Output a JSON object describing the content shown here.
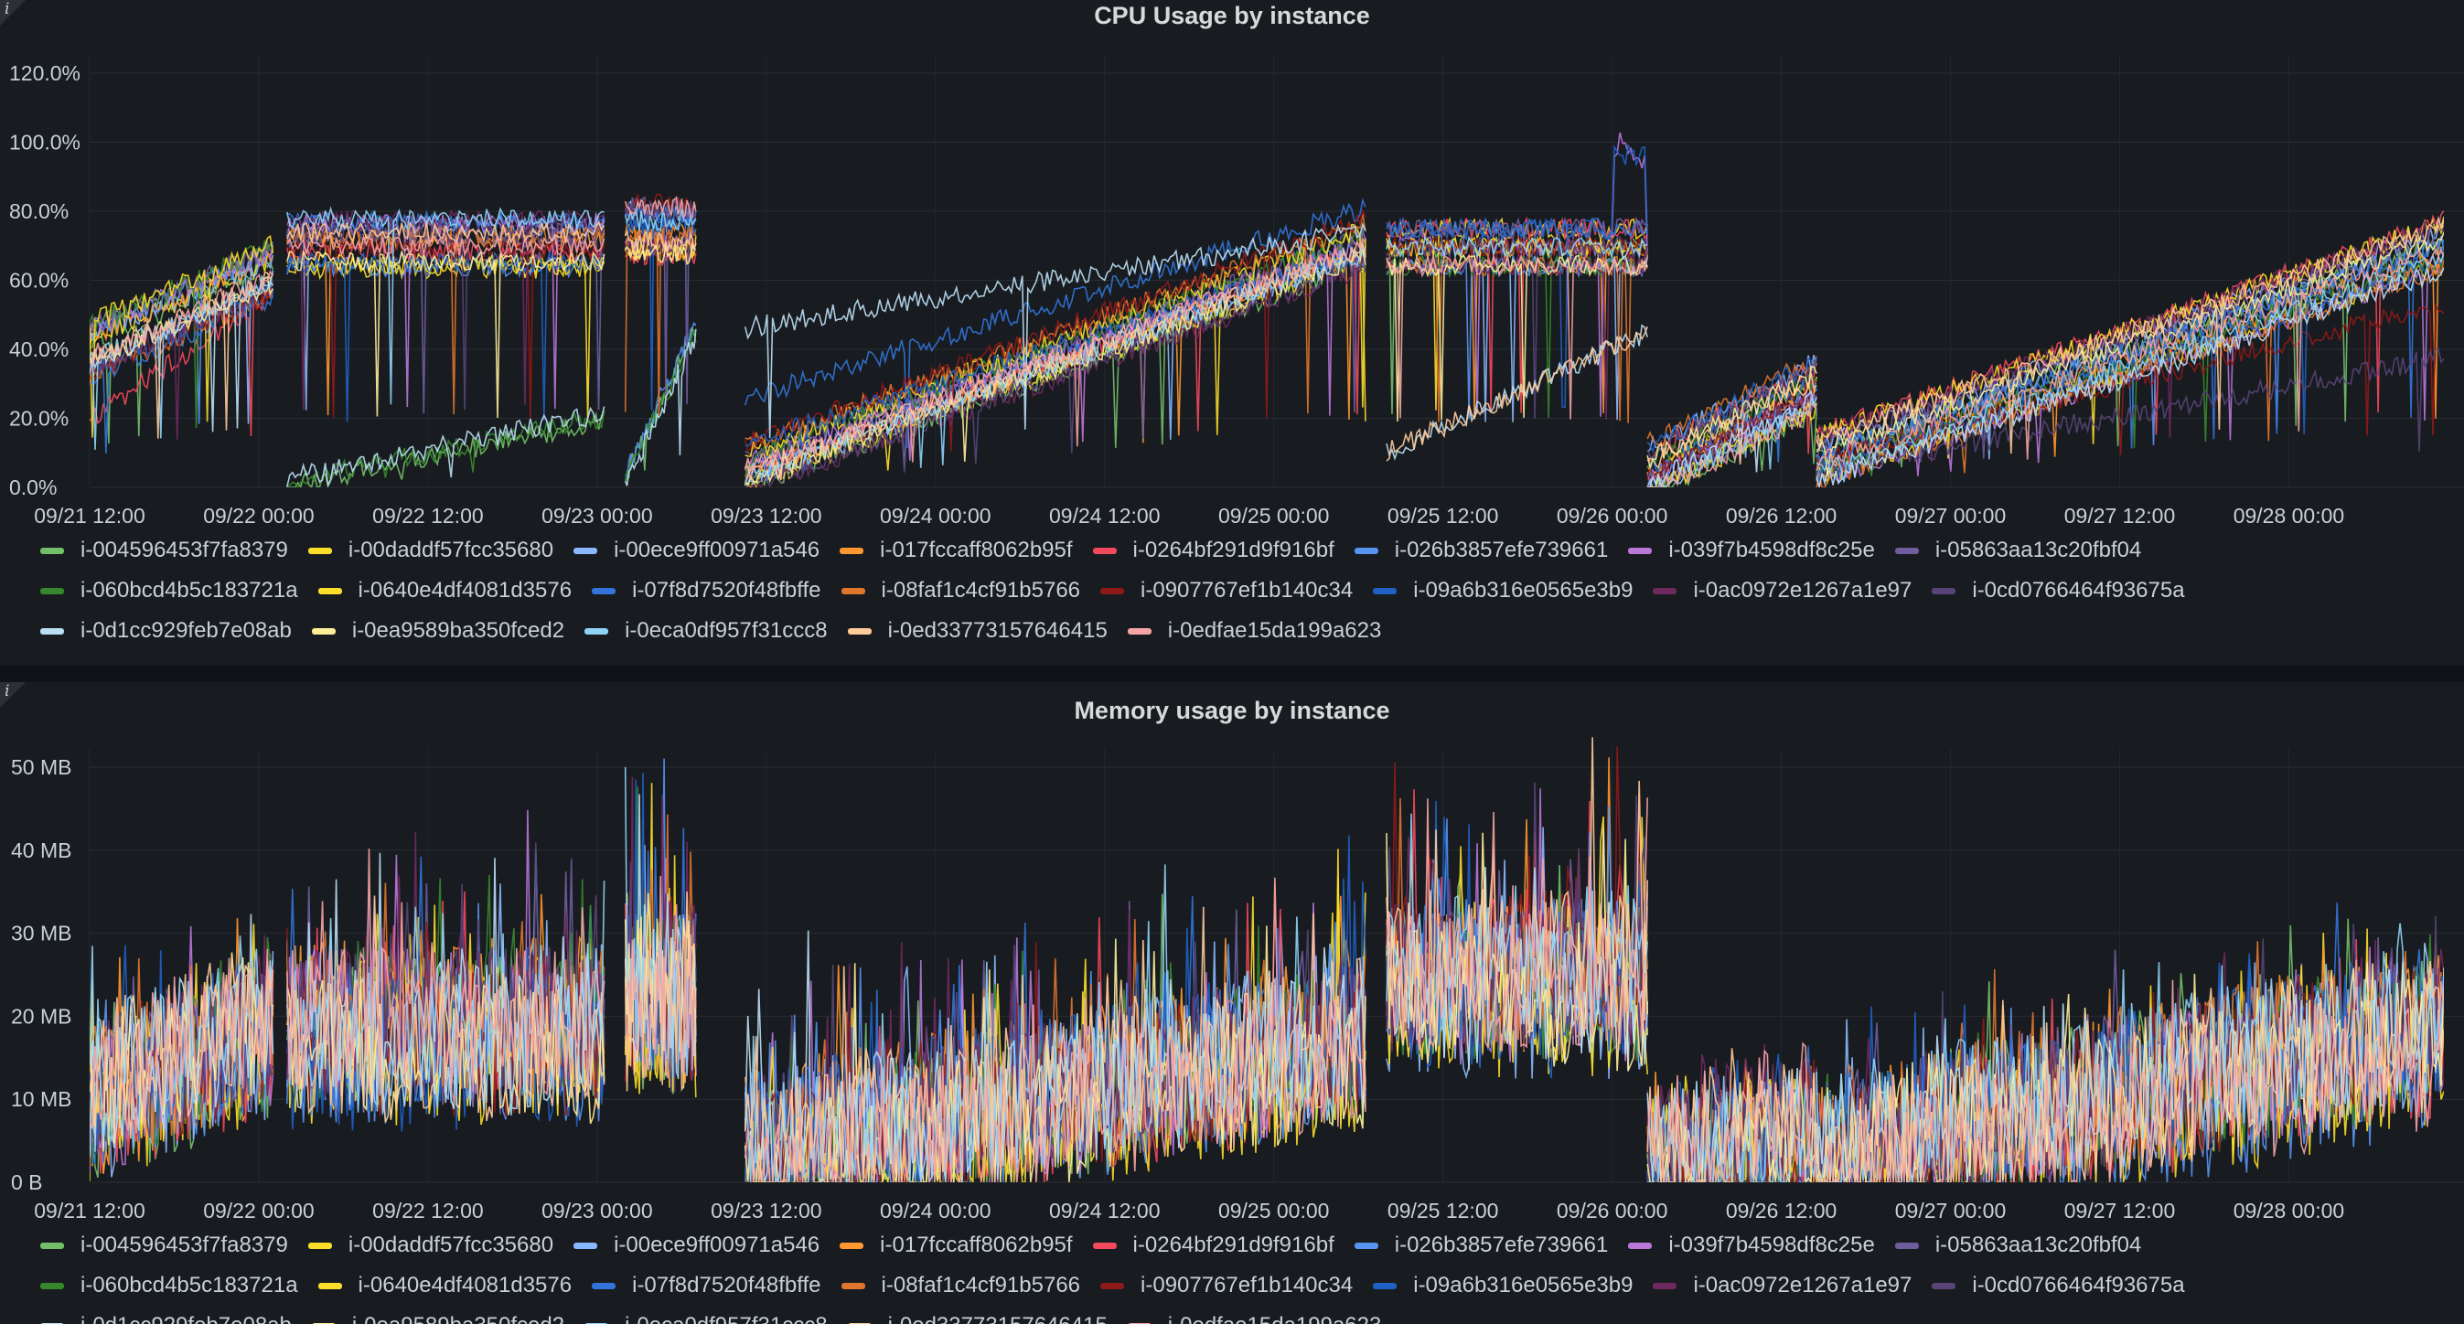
{
  "panels": {
    "cpu": {
      "title": "CPU Usage by instance",
      "info_label": "i"
    },
    "mem": {
      "title": "Memory usage by instance",
      "info_label": "i"
    }
  },
  "legend": [
    {
      "name": "i-004596453f7fa8379",
      "color": "#73bf69"
    },
    {
      "name": "i-00daddf57fcc35680",
      "color": "#fade2a"
    },
    {
      "name": "i-00ece9ff00971a546",
      "color": "#8ab8ff"
    },
    {
      "name": "i-017fccaff8062b95f",
      "color": "#ff9830"
    },
    {
      "name": "i-0264bf291d9f916bf",
      "color": "#f2495c"
    },
    {
      "name": "i-026b3857efe739661",
      "color": "#5794f2"
    },
    {
      "name": "i-039f7b4598df8c25e",
      "color": "#b877d9"
    },
    {
      "name": "i-05863aa13c20fbf04",
      "color": "#705da0"
    },
    {
      "name": "i-060bcd4b5c183721a",
      "color": "#37872d"
    },
    {
      "name": "i-0640e4df4081d3576",
      "color": "#fade2a"
    },
    {
      "name": "i-07f8d7520f48fbffe",
      "color": "#3274d9"
    },
    {
      "name": "i-08faf1c4cf91b5766",
      "color": "#e0752d"
    },
    {
      "name": "i-0907767ef1b140c34",
      "color": "#8f1919"
    },
    {
      "name": "i-09a6b316e0565e3b9",
      "color": "#1f60c4"
    },
    {
      "name": "i-0ac0972e1267a1e97",
      "color": "#6e2a5e"
    },
    {
      "name": "i-0cd0766464f93675a",
      "color": "#584477"
    },
    {
      "name": "i-0d1cc929feb7e08ab",
      "color": "#badff4"
    },
    {
      "name": "i-0ea9589ba350fced2",
      "color": "#ffee99"
    },
    {
      "name": "i-0eca0df957f31ccc8",
      "color": "#8fd3f6"
    },
    {
      "name": "i-0ed33773157646415",
      "color": "#ffcb9a"
    },
    {
      "name": "i-0edfae15da199a623",
      "color": "#f4a4a4"
    }
  ],
  "chart_data": [
    {
      "type": "line",
      "title": "CPU Usage by instance",
      "x_ticks": [
        "09/21 12:00",
        "09/22 00:00",
        "09/22 12:00",
        "09/23 00:00",
        "09/23 12:00",
        "09/24 00:00",
        "09/24 12:00",
        "09/25 00:00",
        "09/25 12:00",
        "09/26 00:00",
        "09/26 12:00",
        "09/27 00:00",
        "09/27 12:00",
        "09/28 00:00"
      ],
      "x_range": [
        "09/21 12:00",
        "09/28 11:00"
      ],
      "y_ticks": [
        "0.0%",
        "20.0%",
        "40.0%",
        "60.0%",
        "80.0%",
        "100.0%",
        "120.0%"
      ],
      "ylim": [
        0,
        120
      ],
      "y_unit": "percent",
      "grid": true,
      "legend_placement": "bottom",
      "gaps": [
        [
          "09/22 01:00",
          "09/22 02:00"
        ],
        [
          "09/23 00:30",
          "09/23 02:00"
        ],
        [
          "09/23 07:00",
          "09/23 10:30"
        ],
        [
          "09/25 06:30",
          "09/25 08:00"
        ]
      ],
      "segments": [
        {
          "start": "09/21 12:00",
          "end": "09/22 01:00",
          "typical_start": 40,
          "typical_end": 63,
          "low_series_start": 15,
          "low_series_end": 52
        },
        {
          "start": "09/22 02:00",
          "end": "09/23 00:30",
          "typical": 70,
          "low_series_start": 3,
          "low_series_end": 22
        },
        {
          "start": "09/23 02:00",
          "end": "09/23 07:00",
          "typical": 75,
          "low_series_start": 2,
          "low_series_end": 45
        },
        {
          "start": "09/23 10:30",
          "end": "09/25 06:30",
          "typical_start": 5,
          "typical_end": 70,
          "high_series_start": 50,
          "high_series_end": 78
        },
        {
          "start": "09/25 08:00",
          "end": "09/26 02:30",
          "typical": 70,
          "peak": 104,
          "low_series_start": 5,
          "low_series_end": 40
        },
        {
          "start": "09/26 02:30",
          "end": "09/26 14:30",
          "typical_start": 5,
          "typical_end": 30
        },
        {
          "start": "09/26 14:30",
          "end": "09/28 11:00",
          "typical_start": 8,
          "typical_end": 70
        }
      ]
    },
    {
      "type": "line",
      "title": "Memory usage by instance",
      "x_ticks": [
        "09/21 12:00",
        "09/22 00:00",
        "09/22 12:00",
        "09/23 00:00",
        "09/23 12:00",
        "09/24 00:00",
        "09/24 12:00",
        "09/25 00:00",
        "09/25 12:00",
        "09/26 00:00",
        "09/26 12:00",
        "09/27 00:00",
        "09/27 12:00",
        "09/28 00:00"
      ],
      "x_range": [
        "09/21 12:00",
        "09/28 11:00"
      ],
      "y_ticks": [
        "0 B",
        "10 MB",
        "20 MB",
        "30 MB",
        "40 MB",
        "50 MB"
      ],
      "ylim": [
        0,
        50
      ],
      "y_unit": "MB",
      "grid": true,
      "legend_placement": "bottom",
      "gaps": [
        [
          "09/22 01:00",
          "09/22 02:00"
        ],
        [
          "09/23 00:30",
          "09/23 02:00"
        ],
        [
          "09/23 07:00",
          "09/23 10:30"
        ],
        [
          "09/25 06:30",
          "09/25 08:00"
        ]
      ],
      "segments": [
        {
          "start": "09/21 12:00",
          "end": "09/22 01:00",
          "typical_start": 10,
          "typical_end": 18,
          "peak": 30
        },
        {
          "start": "09/22 02:00",
          "end": "09/23 00:30",
          "typical": 18,
          "peak": 35
        },
        {
          "start": "09/23 02:00",
          "end": "09/23 07:00",
          "typical": 22,
          "peak": 43
        },
        {
          "start": "09/23 10:30",
          "end": "09/25 06:30",
          "typical_start": 3,
          "typical_end": 17,
          "peak": 35
        },
        {
          "start": "09/25 08:00",
          "end": "09/26 02:30",
          "typical": 24,
          "peak": 45
        },
        {
          "start": "09/26 02:30",
          "end": "09/26 14:30",
          "typical_start": 2,
          "typical_end": 7
        },
        {
          "start": "09/26 14:30",
          "end": "09/28 11:00",
          "typical_start": 2,
          "typical_end": 18,
          "peak": 27
        }
      ]
    }
  ]
}
